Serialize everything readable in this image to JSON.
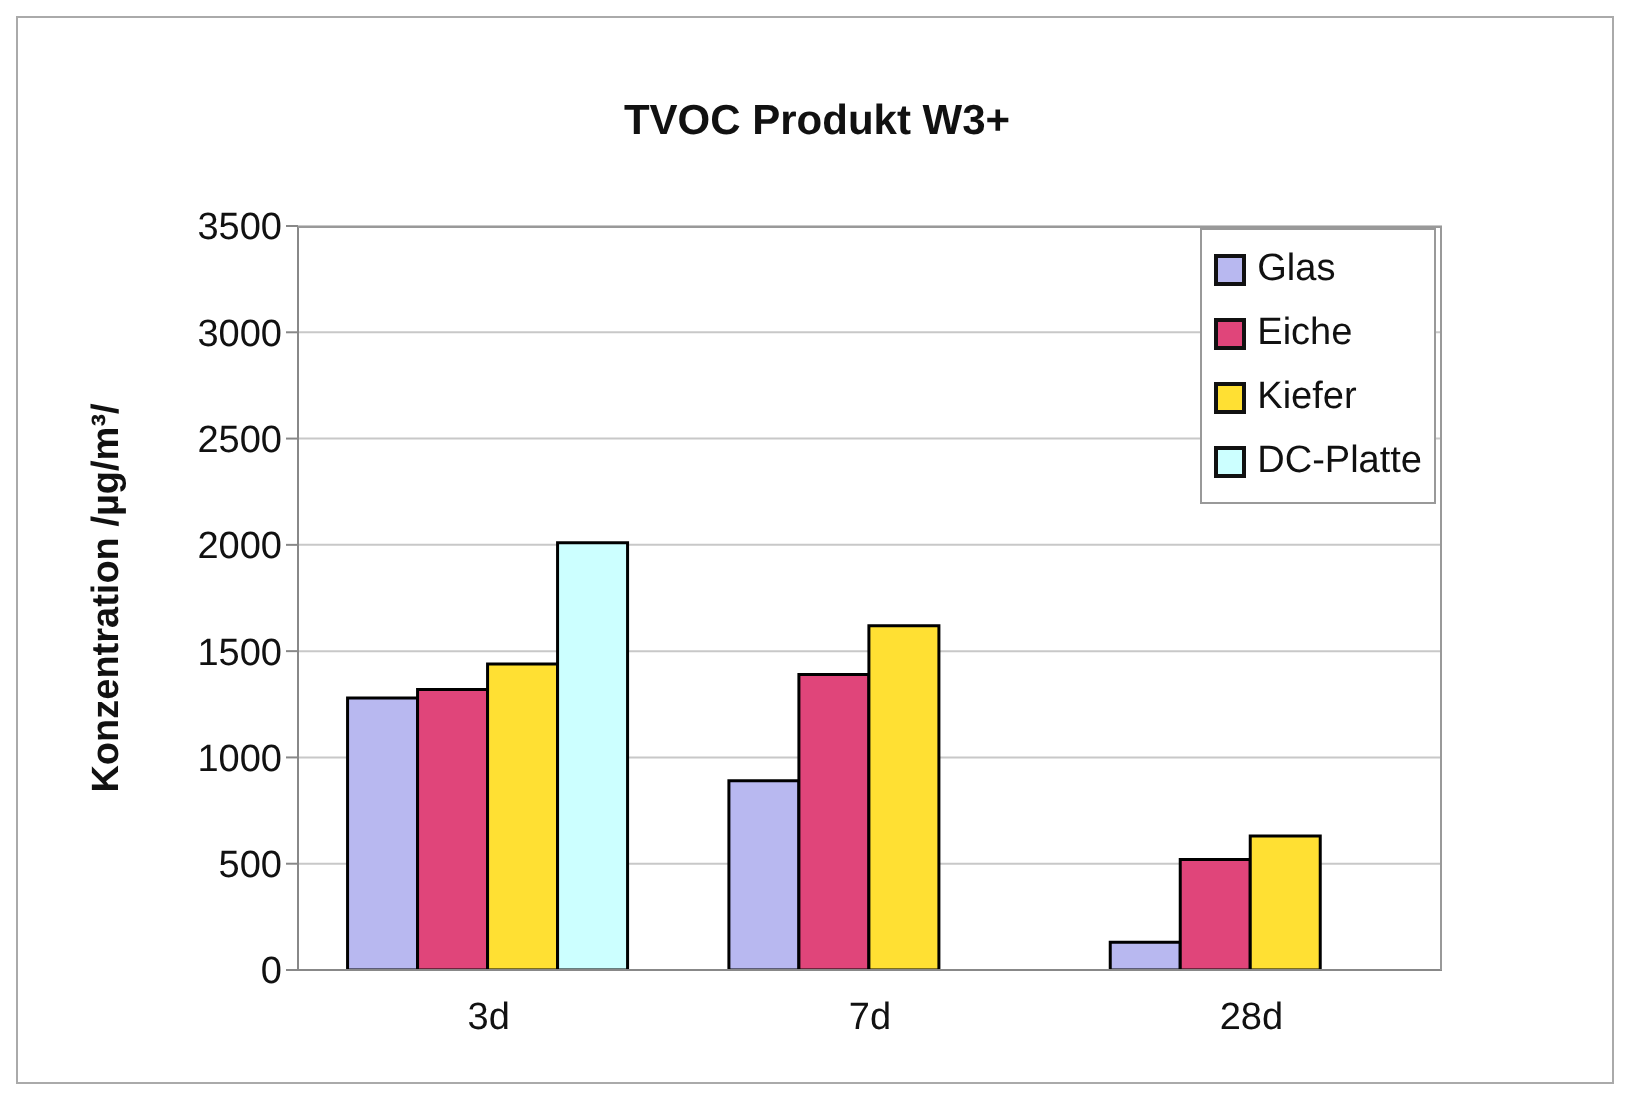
{
  "chart_data": {
    "type": "bar",
    "title": "TVOC Produkt W3+",
    "ylabel": "Konzentration /µg/m³/",
    "categories": [
      "3d",
      "7d",
      "28d"
    ],
    "series": [
      {
        "name": "Glas",
        "color": "#b8b8f0",
        "values": [
          1280,
          890,
          130
        ]
      },
      {
        "name": "Eiche",
        "color": "#e0457a",
        "values": [
          1320,
          1390,
          520
        ]
      },
      {
        "name": "Kiefer",
        "color": "#ffe033",
        "values": [
          1440,
          1620,
          630
        ]
      },
      {
        "name": "DC-Platte",
        "color": "#ccffff",
        "values": [
          2010,
          null,
          null
        ]
      }
    ],
    "ylim": [
      0,
      3500
    ],
    "yticks": [
      0,
      500,
      1000,
      1500,
      2000,
      2500,
      3000,
      3500
    ],
    "grid": "y",
    "legend": "top right"
  }
}
